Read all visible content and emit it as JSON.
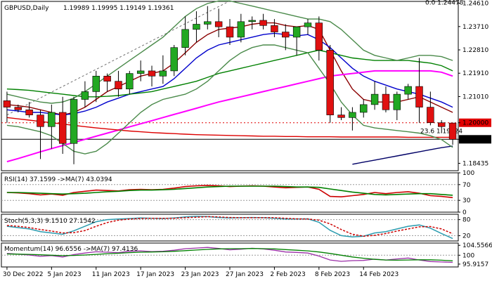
{
  "chart_data": [
    {
      "panel": "price",
      "type": "candlestick",
      "title": "GBPUSD,Daily",
      "ohlc_header": "1.19989 1.19995 1.19149 1.19361",
      "y_ticks": [
        "1.24610",
        "1.23710",
        "1.22810",
        "1.21910",
        "1.21010",
        "1.20000",
        "1.19361",
        "1.18435"
      ],
      "y_range": [
        1.1815,
        1.2468
      ],
      "annotations": [
        {
          "text": "0.0 1.24478",
          "y": 1.24478
        },
        {
          "text": "23.6 1.19524",
          "y": 1.19524
        }
      ],
      "reference_lines": [
        {
          "label": "1.20000",
          "y": 1.2,
          "style": "dotted",
          "color": "#e00000"
        },
        {
          "label": "1.19361",
          "y": 1.19361,
          "style": "solid",
          "color": "#000000"
        }
      ],
      "candles": [
        {
          "o": 1.2085,
          "h": 1.212,
          "l": 1.2,
          "c": 1.206
        },
        {
          "o": 1.206,
          "h": 1.207,
          "l": 1.204,
          "c": 1.205
        },
        {
          "o": 1.205,
          "h": 1.208,
          "l": 1.202,
          "c": 1.203
        },
        {
          "o": 1.203,
          "h": 1.205,
          "l": 1.186,
          "c": 1.1985
        },
        {
          "o": 1.1985,
          "h": 1.207,
          "l": 1.19,
          "c": 1.204
        },
        {
          "o": 1.204,
          "h": 1.21,
          "l": 1.188,
          "c": 1.192
        },
        {
          "o": 1.192,
          "h": 1.21,
          "l": 1.184,
          "c": 1.209
        },
        {
          "o": 1.209,
          "h": 1.216,
          "l": 1.206,
          "c": 1.212
        },
        {
          "o": 1.212,
          "h": 1.22,
          "l": 1.208,
          "c": 1.218
        },
        {
          "o": 1.218,
          "h": 1.219,
          "l": 1.212,
          "c": 1.216
        },
        {
          "o": 1.216,
          "h": 1.22,
          "l": 1.21,
          "c": 1.213
        },
        {
          "o": 1.213,
          "h": 1.22,
          "l": 1.211,
          "c": 1.219
        },
        {
          "o": 1.219,
          "h": 1.224,
          "l": 1.216,
          "c": 1.22
        },
        {
          "o": 1.22,
          "h": 1.222,
          "l": 1.214,
          "c": 1.218
        },
        {
          "o": 1.218,
          "h": 1.226,
          "l": 1.215,
          "c": 1.22
        },
        {
          "o": 1.22,
          "h": 1.23,
          "l": 1.218,
          "c": 1.229
        },
        {
          "o": 1.229,
          "h": 1.241,
          "l": 1.226,
          "c": 1.236
        },
        {
          "o": 1.236,
          "h": 1.243,
          "l": 1.231,
          "c": 1.238
        },
        {
          "o": 1.238,
          "h": 1.245,
          "l": 1.236,
          "c": 1.239
        },
        {
          "o": 1.239,
          "h": 1.244,
          "l": 1.233,
          "c": 1.237
        },
        {
          "o": 1.237,
          "h": 1.24,
          "l": 1.23,
          "c": 1.233
        },
        {
          "o": 1.233,
          "h": 1.242,
          "l": 1.231,
          "c": 1.239
        },
        {
          "o": 1.239,
          "h": 1.241,
          "l": 1.236,
          "c": 1.2395
        },
        {
          "o": 1.2395,
          "h": 1.242,
          "l": 1.236,
          "c": 1.2375
        },
        {
          "o": 1.2375,
          "h": 1.24,
          "l": 1.233,
          "c": 1.235
        },
        {
          "o": 1.235,
          "h": 1.238,
          "l": 1.228,
          "c": 1.233
        },
        {
          "o": 1.233,
          "h": 1.237,
          "l": 1.226,
          "c": 1.237
        },
        {
          "o": 1.237,
          "h": 1.24,
          "l": 1.234,
          "c": 1.2385
        },
        {
          "o": 1.2385,
          "h": 1.241,
          "l": 1.224,
          "c": 1.228
        },
        {
          "o": 1.228,
          "h": 1.23,
          "l": 1.2,
          "c": 1.203
        },
        {
          "o": 1.203,
          "h": 1.206,
          "l": 1.201,
          "c": 1.202
        },
        {
          "o": 1.202,
          "h": 1.206,
          "l": 1.197,
          "c": 1.204
        },
        {
          "o": 1.204,
          "h": 1.209,
          "l": 1.202,
          "c": 1.207
        },
        {
          "o": 1.207,
          "h": 1.216,
          "l": 1.205,
          "c": 1.211
        },
        {
          "o": 1.211,
          "h": 1.214,
          "l": 1.204,
          "c": 1.205
        },
        {
          "o": 1.205,
          "h": 1.212,
          "l": 1.201,
          "c": 1.211
        },
        {
          "o": 1.211,
          "h": 1.215,
          "l": 1.209,
          "c": 1.214
        },
        {
          "o": 1.214,
          "h": 1.225,
          "l": 1.2,
          "c": 1.206
        },
        {
          "o": 1.206,
          "h": 1.212,
          "l": 1.199,
          "c": 1.2
        },
        {
          "o": 1.2,
          "h": 1.201,
          "l": 1.196,
          "c": 1.1985
        },
        {
          "o": 1.1999,
          "h": 1.2,
          "l": 1.1915,
          "c": 1.1936
        }
      ],
      "series": [
        {
          "name": "",
          "color": "#8b0000",
          "values": [
            1.207,
            1.2066,
            1.206,
            1.205,
            1.204,
            1.203,
            1.204,
            1.206,
            1.209,
            1.212,
            1.214,
            1.216,
            1.218,
            1.219,
            1.22,
            1.223,
            1.227,
            1.231,
            1.234,
            1.236,
            1.2365,
            1.237,
            1.238,
            1.2385,
            1.2385,
            1.2375,
            1.237,
            1.2375,
            1.236,
            1.228,
            1.22,
            1.213,
            1.209,
            1.208,
            1.208,
            1.208,
            1.209,
            1.21,
            1.208,
            1.206,
            1.204
          ]
        },
        {
          "name": "",
          "color": "#0000cc",
          "values": [
            1.205,
            1.2045,
            1.204,
            1.204,
            1.2035,
            1.203,
            1.2035,
            1.2045,
            1.206,
            1.208,
            1.2095,
            1.211,
            1.212,
            1.213,
            1.214,
            1.217,
            1.221,
            1.225,
            1.228,
            1.23,
            1.231,
            1.232,
            1.233,
            1.234,
            1.2345,
            1.234,
            1.2335,
            1.234,
            1.232,
            1.229,
            1.225,
            1.221,
            1.218,
            1.216,
            1.2145,
            1.213,
            1.212,
            1.211,
            1.2095,
            1.208,
            1.206
          ]
        },
        {
          "name": "",
          "color": "#008000",
          "values": [
            1.213,
            1.2128,
            1.2125,
            1.212,
            1.2115,
            1.211,
            1.2105,
            1.21,
            1.21,
            1.2102,
            1.2105,
            1.211,
            1.2115,
            1.212,
            1.213,
            1.214,
            1.215,
            1.216,
            1.2175,
            1.219,
            1.22,
            1.221,
            1.222,
            1.223,
            1.224,
            1.225,
            1.226,
            1.227,
            1.228,
            1.227,
            1.226,
            1.225,
            1.2245,
            1.224,
            1.224,
            1.224,
            1.224,
            1.2235,
            1.223,
            1.222,
            1.22
          ]
        },
        {
          "name": "",
          "color": "#ff00ff",
          "values": [
            1.185,
            1.1862,
            1.1875,
            1.1888,
            1.19,
            1.1912,
            1.1924,
            1.1936,
            1.1948,
            1.196,
            1.1972,
            1.1984,
            1.1996,
            1.2008,
            1.202,
            1.2032,
            1.2044,
            1.2056,
            1.2068,
            1.208,
            1.209,
            1.21,
            1.211,
            1.212,
            1.213,
            1.214,
            1.215,
            1.216,
            1.217,
            1.218,
            1.2185,
            1.219,
            1.2195,
            1.22,
            1.22,
            1.22,
            1.22,
            1.22,
            1.22,
            1.2195,
            1.218
          ]
        },
        {
          "name": "",
          "color": "#dd0000",
          "values": [
            1.202,
            1.2015,
            1.201,
            1.2005,
            1.2,
            1.1995,
            1.199,
            1.1985,
            1.198,
            1.1976,
            1.1972,
            1.1968,
            1.1965,
            1.1962,
            1.196,
            1.1958,
            1.1956,
            1.1954,
            1.1953,
            1.1952,
            1.1951,
            1.195,
            1.1949,
            1.1948,
            1.1948,
            1.1947,
            1.1947,
            1.1946,
            1.1946,
            1.1946,
            1.1945,
            1.1945,
            1.1945,
            1.1945,
            1.1945,
            1.1945,
            1.1944,
            1.1944,
            1.1944,
            1.1944,
            1.1944
          ]
        },
        {
          "name": "",
          "color": "#000066",
          "values": [
            null,
            null,
            null,
            null,
            null,
            null,
            null,
            null,
            null,
            null,
            null,
            null,
            null,
            null,
            null,
            null,
            null,
            null,
            null,
            null,
            null,
            null,
            null,
            null,
            null,
            null,
            null,
            null,
            null,
            null,
            null,
            1.184,
            1.1848,
            1.1856,
            1.1864,
            1.1872,
            1.188,
            1.1888,
            1.1896,
            1.1904,
            1.191
          ]
        },
        {
          "name": "",
          "color": "#4a8a4a",
          "values": [
            1.211,
            1.21,
            1.209,
            1.208,
            1.2075,
            1.208,
            1.2095,
            1.212,
            1.215,
            1.218,
            1.221,
            1.224,
            1.227,
            1.23,
            1.233,
            1.237,
            1.241,
            1.244,
            1.246,
            1.247,
            1.247,
            1.246,
            1.245,
            1.244,
            1.243,
            1.242,
            1.241,
            1.24,
            1.24,
            1.239,
            1.236,
            1.232,
            1.228,
            1.226,
            1.225,
            1.224,
            1.225,
            1.226,
            1.226,
            1.2255,
            1.224
          ]
        },
        {
          "name": "",
          "color": "#4a8a4a",
          "values": [
            1.199,
            1.1985,
            1.1975,
            1.1965,
            1.195,
            1.192,
            1.189,
            1.188,
            1.189,
            1.192,
            1.196,
            1.2,
            1.204,
            1.207,
            1.209,
            1.21,
            1.211,
            1.213,
            1.216,
            1.22,
            1.224,
            1.227,
            1.229,
            1.23,
            1.23,
            1.229,
            1.228,
            1.227,
            1.221,
            1.215,
            1.208,
            1.203,
            1.199,
            1.198,
            1.1975,
            1.197,
            1.1965,
            1.196,
            1.195,
            1.1935,
            1.1905
          ]
        }
      ],
      "diagonal_line": {
        "style": "dashed",
        "color": "#707070",
        "from": {
          "i": 0,
          "y": 1.203
        },
        "to": {
          "i": 20,
          "y": 1.247
        }
      }
    },
    {
      "panel": "rsi",
      "type": "line",
      "title": "RSI(14) 37.1599  ->MA(7) 43.0394",
      "y_ticks": [
        "100",
        "70",
        "30",
        "0"
      ],
      "y_range": [
        0,
        100
      ],
      "levels": [
        70,
        30
      ],
      "series": [
        {
          "name": "",
          "color": "#cc0000",
          "values": [
            50,
            49,
            47,
            44,
            46,
            43,
            50,
            53,
            56,
            55,
            54,
            57,
            58,
            57,
            58,
            61,
            65,
            67,
            68,
            67,
            65,
            66,
            67,
            66,
            64,
            62,
            63,
            64,
            58,
            40,
            39,
            42,
            45,
            50,
            47,
            50,
            52,
            48,
            42,
            40,
            37
          ]
        },
        {
          "name": "",
          "color": "#008000",
          "values": [
            50,
            50,
            49,
            48,
            47,
            46,
            47,
            48,
            50,
            52,
            53,
            55,
            56,
            56,
            57,
            58,
            60,
            62,
            64,
            65,
            66,
            66,
            66,
            66,
            66,
            65,
            64,
            64,
            63,
            59,
            55,
            51,
            48,
            45,
            44,
            45,
            46,
            47,
            47,
            45,
            43
          ]
        }
      ]
    },
    {
      "panel": "stoch",
      "type": "line",
      "title": "Stoch(5,3,3) 9.1510 27.1542",
      "y_ticks": [
        "80",
        "20"
      ],
      "y_range": [
        0,
        100
      ],
      "levels": [
        80,
        20
      ],
      "series": [
        {
          "name": "",
          "color": "#2c9cb0",
          "values": [
            55,
            50,
            45,
            35,
            30,
            25,
            38,
            55,
            72,
            80,
            82,
            84,
            86,
            85,
            84,
            86,
            90,
            92,
            91,
            88,
            86,
            87,
            88,
            87,
            85,
            82,
            82,
            83,
            70,
            40,
            20,
            15,
            18,
            30,
            35,
            45,
            55,
            60,
            48,
            28,
            9
          ]
        },
        {
          "name": "",
          "color": "#cc0000",
          "values": [
            58,
            55,
            50,
            43,
            37,
            30,
            31,
            39,
            55,
            69,
            78,
            82,
            84,
            85,
            85,
            85,
            87,
            89,
            91,
            90,
            88,
            87,
            87,
            87,
            87,
            85,
            83,
            82,
            78,
            64,
            43,
            25,
            18,
            21,
            28,
            37,
            45,
            53,
            54,
            45,
            27
          ]
        }
      ]
    },
    {
      "panel": "momentum",
      "type": "line",
      "title": "Momentum(14) 96.6556  ->MA(7) 97.4136",
      "y_ticks": [
        "104.5566",
        "100",
        "95.9157"
      ],
      "y_range": [
        94.6,
        105.6
      ],
      "levels": [
        100
      ],
      "series": [
        {
          "name": "",
          "color": "#9b2fa8",
          "values": [
            100.8,
            100.5,
            100.1,
            99.5,
            99.8,
            99.2,
            100.3,
            101.0,
            101.6,
            101.4,
            101.2,
            101.8,
            102.0,
            101.7,
            101.8,
            102.3,
            103.0,
            103.3,
            103.6,
            103.1,
            102.5,
            102.8,
            103.2,
            102.9,
            102.3,
            101.5,
            101.3,
            101.0,
            99.6,
            97.8,
            97.2,
            97.5,
            97.6,
            98.2,
            97.8,
            98.3,
            98.7,
            97.8,
            97.1,
            96.9,
            96.7
          ]
        },
        {
          "name": "",
          "color": "#008000",
          "values": [
            100.6,
            100.5,
            100.4,
            100.2,
            100.0,
            99.8,
            99.9,
            100.1,
            100.4,
            100.7,
            100.9,
            101.2,
            101.4,
            101.5,
            101.6,
            101.8,
            102.1,
            102.4,
            102.7,
            102.9,
            103.0,
            103.0,
            103.1,
            103.0,
            102.9,
            102.6,
            102.3,
            102.0,
            101.5,
            100.8,
            100.0,
            99.2,
            98.6,
            98.1,
            97.8,
            97.7,
            97.8,
            97.9,
            97.9,
            97.7,
            97.4
          ]
        }
      ]
    }
  ],
  "x_axis": {
    "labels": [
      {
        "text": "30 Dec 2022",
        "i": 0
      },
      {
        "text": "5 Jan 2023",
        "i": 4
      },
      {
        "text": "11 Jan 2023",
        "i": 8
      },
      {
        "text": "17 Jan 2023",
        "i": 12
      },
      {
        "text": "23 Jan 2023",
        "i": 16
      },
      {
        "text": "27 Jan 2023",
        "i": 20
      },
      {
        "text": "2 Feb 2023",
        "i": 24
      },
      {
        "text": "8 Feb 2023",
        "i": 28
      },
      {
        "text": "14 Feb 2023",
        "i": 32
      }
    ]
  }
}
